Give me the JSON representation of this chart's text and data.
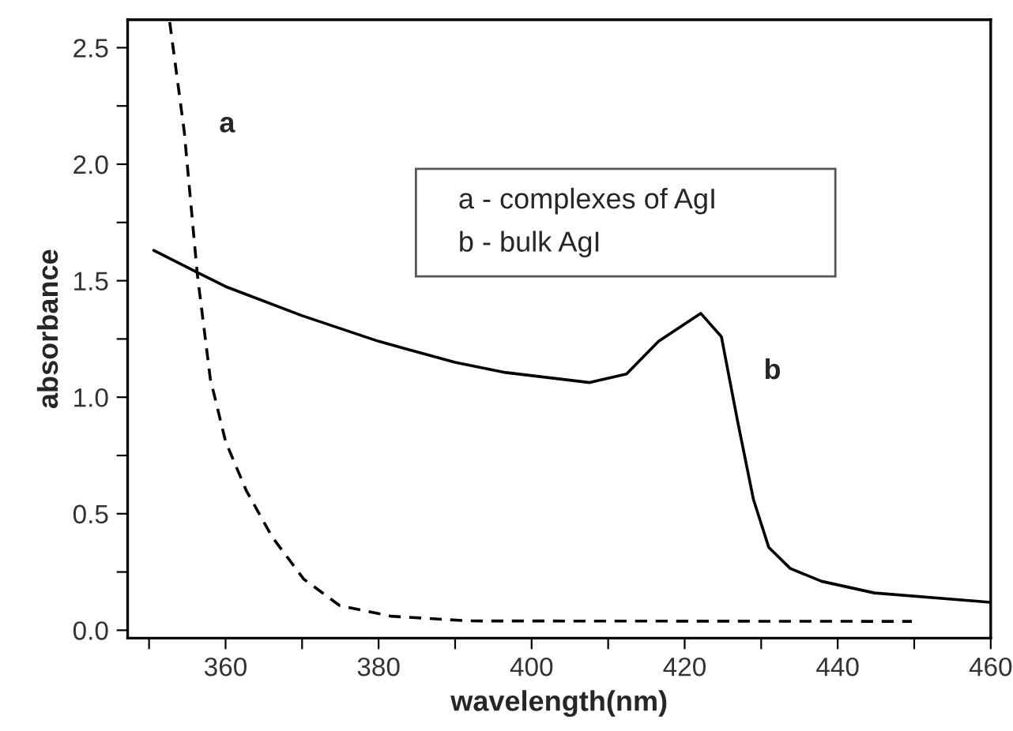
{
  "chart_data": {
    "type": "line",
    "xlabel": "wavelength(nm)",
    "ylabel": "absorbance",
    "xlim": [
      347.2,
      460
    ],
    "ylim": [
      -0.034,
      2.62
    ],
    "xticks": [
      {
        "value": 350,
        "label": null
      },
      360,
      {
        "value": 370,
        "label": null
      },
      380,
      {
        "value": 390,
        "label": null
      },
      400,
      {
        "value": 410,
        "label": null
      },
      420,
      {
        "value": 430,
        "label": null
      },
      440,
      {
        "value": 450,
        "label": null
      },
      460
    ],
    "yticks": [
      {
        "value": 0,
        "label": "0.0"
      },
      {
        "value": 0.25,
        "label": null
      },
      {
        "value": 0.5,
        "label": "0.5"
      },
      {
        "value": 0.75,
        "label": null
      },
      {
        "value": 1,
        "label": "1.0"
      },
      {
        "value": 1.25,
        "label": null
      },
      {
        "value": 1.5,
        "label": "1.5"
      },
      {
        "value": 1.75,
        "label": null
      },
      {
        "value": 2,
        "label": "2.0"
      },
      {
        "value": 2.25,
        "label": null
      },
      {
        "value": 2.5,
        "label": "2.5"
      }
    ],
    "grid": false,
    "legend": false,
    "series": [
      {
        "color": "#000000",
        "line_style": "dashed",
        "x": [
          352.7,
          354.6,
          356.3,
          358,
          360,
          362.7,
          366.1,
          370.2,
          374.9,
          381.7,
          391.9,
          449.7
        ],
        "values": [
          2.61,
          2.14,
          1.53,
          1.08,
          0.81,
          0.6,
          0.4,
          0.22,
          0.106,
          0.06,
          0.04,
          0.038
        ]
      },
      {
        "color": "#000000",
        "line_style": "solid",
        "x": [
          350.6,
          360,
          370,
          380,
          390,
          396.6,
          407.6,
          412.4,
          416.6,
          422.1,
          424.8,
          426.9,
          429,
          431,
          433.8,
          437.9,
          444.8,
          460
        ],
        "values": [
          1.63,
          1.475,
          1.35,
          1.24,
          1.15,
          1.106,
          1.063,
          1.1,
          1.24,
          1.36,
          1.26,
          0.9,
          0.56,
          0.355,
          0.265,
          0.21,
          0.16,
          0.12
        ]
      }
    ],
    "annotations": [
      "a",
      "b",
      "a - complexes of AgI",
      "b - bulk AgI"
    ]
  }
}
